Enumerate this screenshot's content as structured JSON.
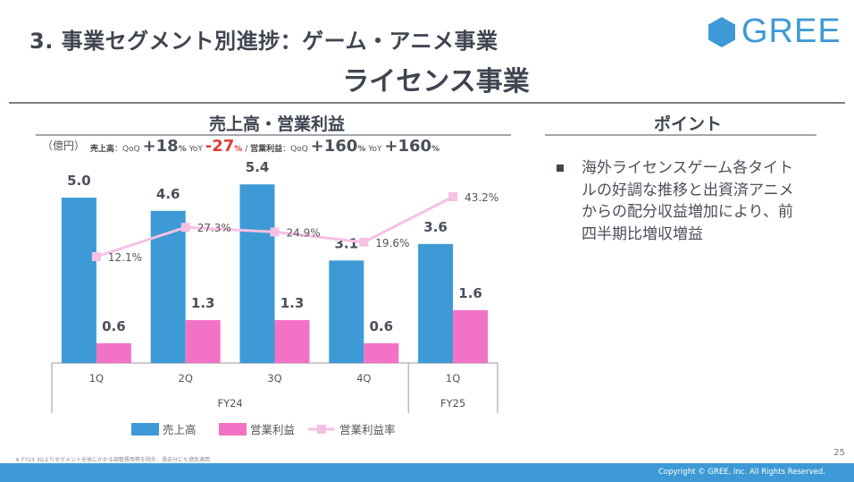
{
  "header": {
    "title": "3. 事業セグメント別進捗：ゲーム・アニメ事業",
    "subtitle": "ライセンス事業",
    "logo_text": "GREE",
    "logo_color": "#3d9ad6"
  },
  "chart_section": {
    "heading": "売上高・営業利益",
    "unit": "（億円）",
    "stats": {
      "sales_label": "売上高",
      "sep1": "：QoQ ",
      "sales_qoq": "+18",
      "pct": "%",
      "yoy_label": " YoY ",
      "sales_yoy": "-27",
      "slash": " / ",
      "op_label": "営業利益",
      "sep2": "：QoQ ",
      "op_qoq": "+160",
      "op_yoy": "+160"
    }
  },
  "chart_data": {
    "type": "bar",
    "title": "売上高・営業利益",
    "ylabel": "億円",
    "categories": [
      "1Q",
      "2Q",
      "3Q",
      "4Q",
      "1Q"
    ],
    "groups": [
      {
        "label": "FY24",
        "span": 4
      },
      {
        "label": "FY25",
        "span": 1
      }
    ],
    "series": [
      {
        "name": "売上高",
        "type": "bar",
        "color": "#3d9ad6",
        "values": [
          5.0,
          4.6,
          5.4,
          3.1,
          3.6
        ],
        "labels": [
          "5.0",
          "4.6",
          "5.4",
          "3.1",
          "3.6"
        ]
      },
      {
        "name": "営業利益",
        "type": "bar",
        "color": "#f272c6",
        "values": [
          0.6,
          1.3,
          1.3,
          0.6,
          1.6
        ],
        "labels": [
          "0.6",
          "1.3",
          "1.3",
          "0.6",
          "1.6"
        ]
      },
      {
        "name": "営業利益率",
        "type": "line",
        "color": "#f6c0e4",
        "values": [
          12.1,
          27.3,
          24.9,
          19.6,
          43.2
        ],
        "labels": [
          "12.1%",
          "27.3%",
          "24.9%",
          "19.6%",
          "43.2%"
        ]
      }
    ],
    "ylim": [
      0,
      5.5
    ],
    "grid": false,
    "legend": "bottom"
  },
  "points": {
    "heading": "ポイント",
    "items": [
      "海外ライセンスゲーム各タイトルの好調な推移と出資済アニメからの配分収益増加により、前四半期比増収増益"
    ]
  },
  "footer": {
    "footnote": "※ FY24 3Qよりセグメント全体にかかる調整費用等を除外、過去分にも遡及適用",
    "page": "25",
    "copyright": "Copyright © GREE, Inc. All Rights Reserved."
  }
}
